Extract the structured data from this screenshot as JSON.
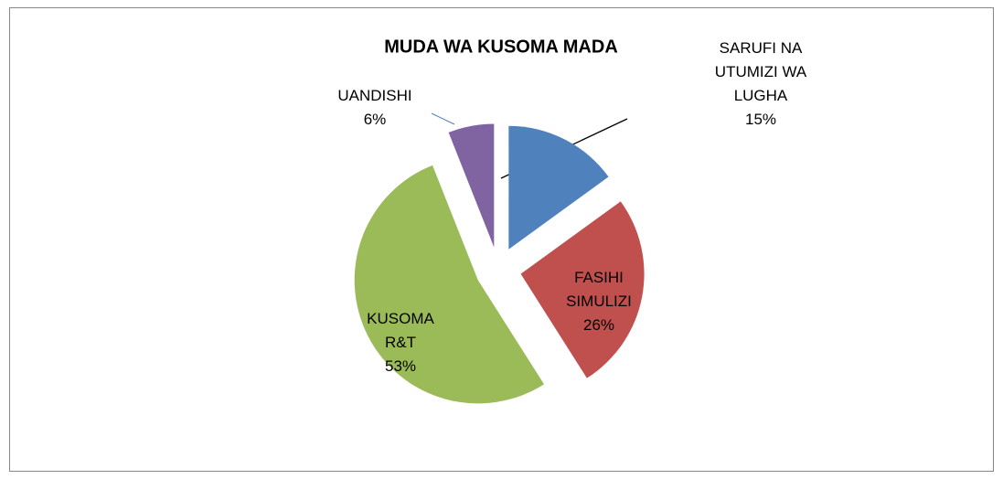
{
  "chart_data": {
    "type": "pie",
    "title": "MUDA WA KUSOMA MADA",
    "categories": [
      "SARUFI NA UTUMIZI WA LUGHA",
      "FASIHI SIMULIZI",
      "KUSOMA R&T",
      "UANDISHI"
    ],
    "values": [
      15,
      26,
      53,
      6
    ],
    "value_labels": [
      "15%",
      "26%",
      "53%",
      "6%"
    ],
    "colors": [
      "#4f81bd",
      "#c0504d",
      "#9bbb59",
      "#8064a2"
    ]
  }
}
